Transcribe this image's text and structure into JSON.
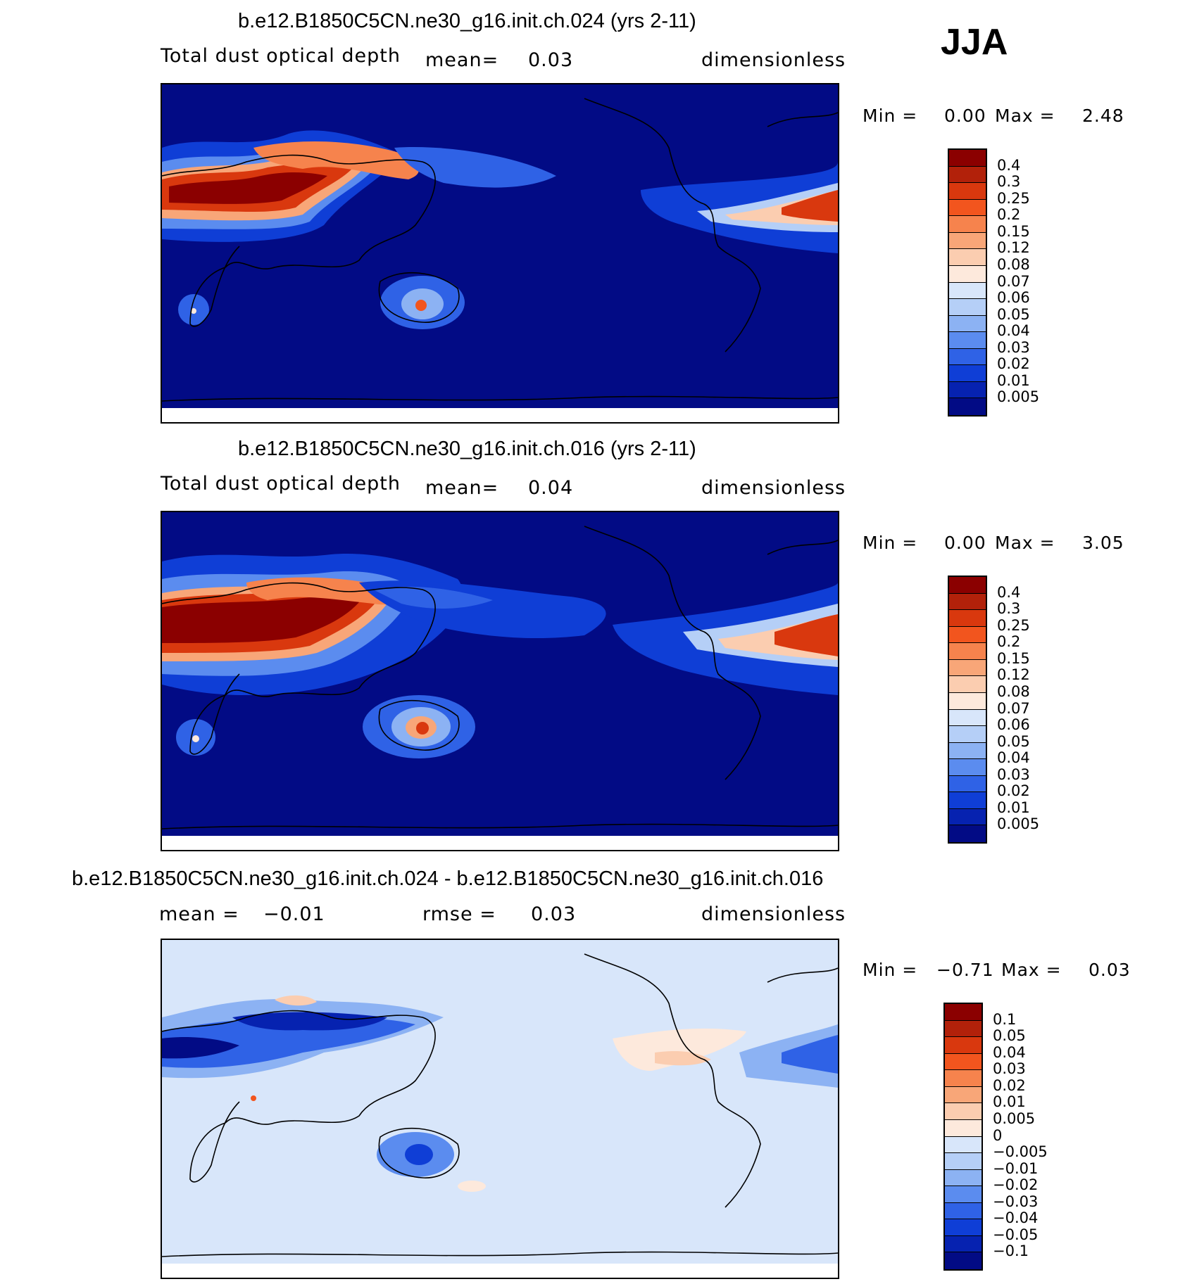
{
  "season": "JJA",
  "panels": [
    {
      "id": "top",
      "title": "b.e12.B1850C5CN.ne30_g16.init.ch.024 (yrs 2-11)",
      "variable": "Total dust optical depth",
      "stat_label": "mean=",
      "stat_value": "0.03",
      "units": "dimensionless",
      "min_label": "Min =",
      "min_value": "0.00",
      "max_label": "Max =",
      "max_value": "2.48",
      "levels": [
        "0.4",
        "0.3",
        "0.25",
        "0.2",
        "0.15",
        "0.12",
        "0.08",
        "0.07",
        "0.06",
        "0.05",
        "0.04",
        "0.03",
        "0.02",
        "0.01",
        "0.005"
      ],
      "colors": [
        "#8b0000",
        "#b2210a",
        "#d9380e",
        "#f2551e",
        "#f6834d",
        "#f8a678",
        "#fbcdb0",
        "#fde9dc",
        "#d8e6fa",
        "#b5cff7",
        "#8cb2f3",
        "#5b8cef",
        "#2f62e6",
        "#0f3ed6",
        "#0622b0",
        "#020b85"
      ]
    },
    {
      "id": "middle",
      "title": "b.e12.B1850C5CN.ne30_g16.init.ch.016 (yrs 2-11)",
      "variable": "Total dust optical depth",
      "stat_label": "mean=",
      "stat_value": "0.04",
      "units": "dimensionless",
      "min_label": "Min =",
      "min_value": "0.00",
      "max_label": "Max =",
      "max_value": "3.05",
      "levels": [
        "0.4",
        "0.3",
        "0.25",
        "0.2",
        "0.15",
        "0.12",
        "0.08",
        "0.07",
        "0.06",
        "0.05",
        "0.04",
        "0.03",
        "0.02",
        "0.01",
        "0.005"
      ],
      "colors": [
        "#8b0000",
        "#b2210a",
        "#d9380e",
        "#f2551e",
        "#f6834d",
        "#f8a678",
        "#fbcdb0",
        "#fde9dc",
        "#d8e6fa",
        "#b5cff7",
        "#8cb2f3",
        "#5b8cef",
        "#2f62e6",
        "#0f3ed6",
        "#0622b0",
        "#020b85"
      ]
    },
    {
      "id": "difference",
      "title": "b.e12.B1850C5CN.ne30_g16.init.ch.024 - b.e12.B1850C5CN.ne30_g16.init.ch.016",
      "mean_label": "mean =",
      "mean_value": "−0.01",
      "rmse_label": "rmse =",
      "rmse_value": "0.03",
      "units": "dimensionless",
      "min_label": "Min =",
      "min_value": "−0.71",
      "max_label": "Max =",
      "max_value": "0.03",
      "levels": [
        "0.1",
        "0.05",
        "0.04",
        "0.03",
        "0.02",
        "0.01",
        "0.005",
        "0",
        "−0.005",
        "−0.01",
        "−0.02",
        "−0.03",
        "−0.04",
        "−0.05",
        "−0.1"
      ],
      "colors": [
        "#8b0000",
        "#b2210a",
        "#d9380e",
        "#f2551e",
        "#f6834d",
        "#f8a678",
        "#fbcdb0",
        "#fde9dc",
        "#d8e6fa",
        "#b5cff7",
        "#8cb2f3",
        "#5b8cef",
        "#2f62e6",
        "#0f3ed6",
        "#0622b0",
        "#020b85"
      ]
    }
  ]
}
